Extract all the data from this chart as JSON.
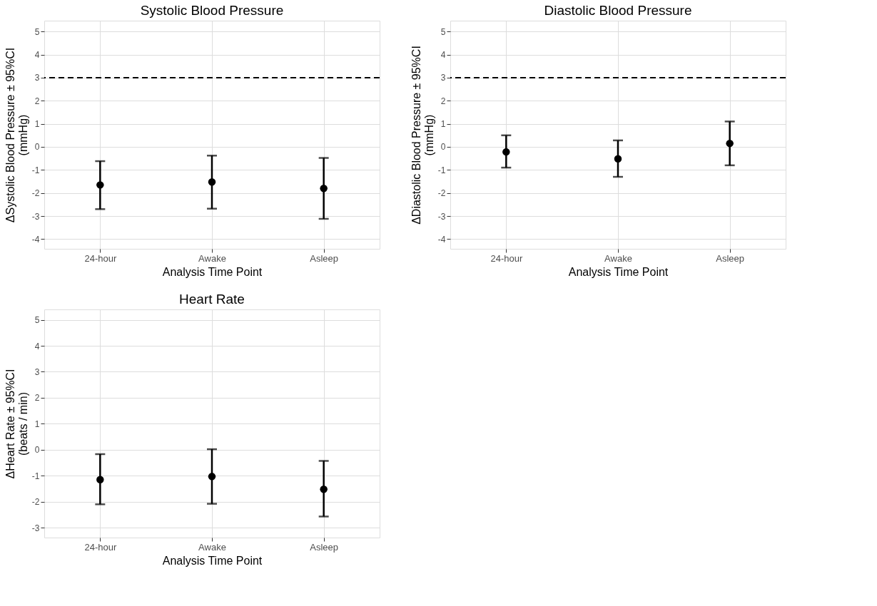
{
  "chart_data": [
    {
      "type": "scatter",
      "title": "Systolic Blood Pressure",
      "xlabel": "Analysis Time Point",
      "ylabel": "ΔSystolic Blood Pressure ± 95%CI\n(mmHg)",
      "categories": [
        "24-hour",
        "Awake",
        "Asleep"
      ],
      "color": "#000000",
      "marker": "circle",
      "grid": true,
      "values": [
        -1.65,
        -1.52,
        -1.8
      ],
      "errors": [
        [
          -2.7,
          -0.62
        ],
        [
          -2.68,
          -0.38
        ],
        [
          -3.12,
          -0.48
        ]
      ],
      "ylim": [
        -4.42,
        5.47
      ],
      "yticks": [
        -4,
        -3,
        -2,
        -1,
        0,
        1,
        2,
        3,
        4,
        5
      ],
      "ref_lines": [
        {
          "axis": "y",
          "value": 3,
          "line_style": "dashed",
          "color": "#000000"
        }
      ]
    },
    {
      "type": "scatter",
      "title": "Diastolic Blood Pressure",
      "xlabel": "Analysis Time Point",
      "ylabel": "ΔDiastolic Blood Pressure ± 95%CI\n(mmHg)",
      "categories": [
        "24-hour",
        "Awake",
        "Asleep"
      ],
      "color": "#000000",
      "marker": "circle",
      "grid": true,
      "values": [
        -0.22,
        -0.52,
        0.15
      ],
      "errors": [
        [
          -0.9,
          0.5
        ],
        [
          -1.3,
          0.28
        ],
        [
          -0.8,
          1.1
        ]
      ],
      "ylim": [
        -4.42,
        5.47
      ],
      "yticks": [
        -4,
        -3,
        -2,
        -1,
        0,
        1,
        2,
        3,
        4,
        5
      ],
      "ref_lines": [
        {
          "axis": "y",
          "value": 3,
          "line_style": "dashed",
          "color": "#000000"
        }
      ]
    },
    {
      "type": "scatter",
      "title": "Heart Rate",
      "xlabel": "Analysis Time Point",
      "ylabel": "ΔHeart Rate ± 95%CI\n(beats / min)",
      "categories": [
        "24-hour",
        "Awake",
        "Asleep"
      ],
      "color": "#000000",
      "marker": "circle",
      "grid": true,
      "values": [
        -1.15,
        -1.03,
        -1.52
      ],
      "errors": [
        [
          -2.1,
          -0.17
        ],
        [
          -2.08,
          0.02
        ],
        [
          -2.57,
          -0.43
        ]
      ],
      "ylim": [
        -3.38,
        5.4
      ],
      "yticks": [
        -3,
        -2,
        -1,
        0,
        1,
        2,
        3,
        4,
        5
      ]
    }
  ]
}
